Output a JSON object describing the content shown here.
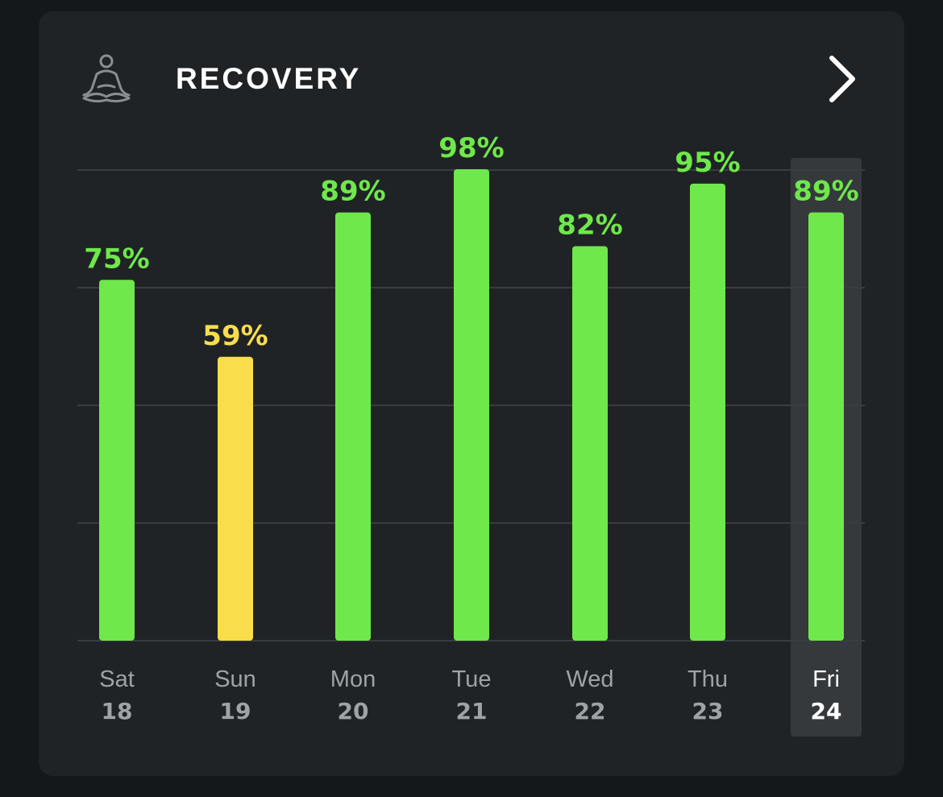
{
  "header": {
    "title": "RECOVERY",
    "icon": "meditation-icon",
    "nav_icon": "chevron-right-icon"
  },
  "colors": {
    "background": "#15181b",
    "card": "#202326",
    "green": "#6ee84a",
    "yellow": "#f9dd4b",
    "gridline": "#3a3d40",
    "label_dim": "#a0a3a6",
    "label_selected": "#ffffff",
    "selected_bg": "#35393c"
  },
  "chart_data": {
    "type": "bar",
    "categories": [
      "Sat",
      "Sun",
      "Mon",
      "Tue",
      "Wed",
      "Thu",
      "Fri"
    ],
    "dates": [
      "18",
      "19",
      "20",
      "21",
      "22",
      "23",
      "24"
    ],
    "values": [
      75,
      59,
      89,
      98,
      82,
      95,
      89
    ],
    "value_labels": [
      "75%",
      "59%",
      "89%",
      "98%",
      "82%",
      "95%",
      "89%"
    ],
    "bar_colors": [
      "#6ee84a",
      "#f9dd4b",
      "#6ee84a",
      "#6ee84a",
      "#6ee84a",
      "#6ee84a",
      "#6ee84a"
    ],
    "selected_index": 6,
    "ylim": [
      0,
      100
    ],
    "grid": true
  }
}
